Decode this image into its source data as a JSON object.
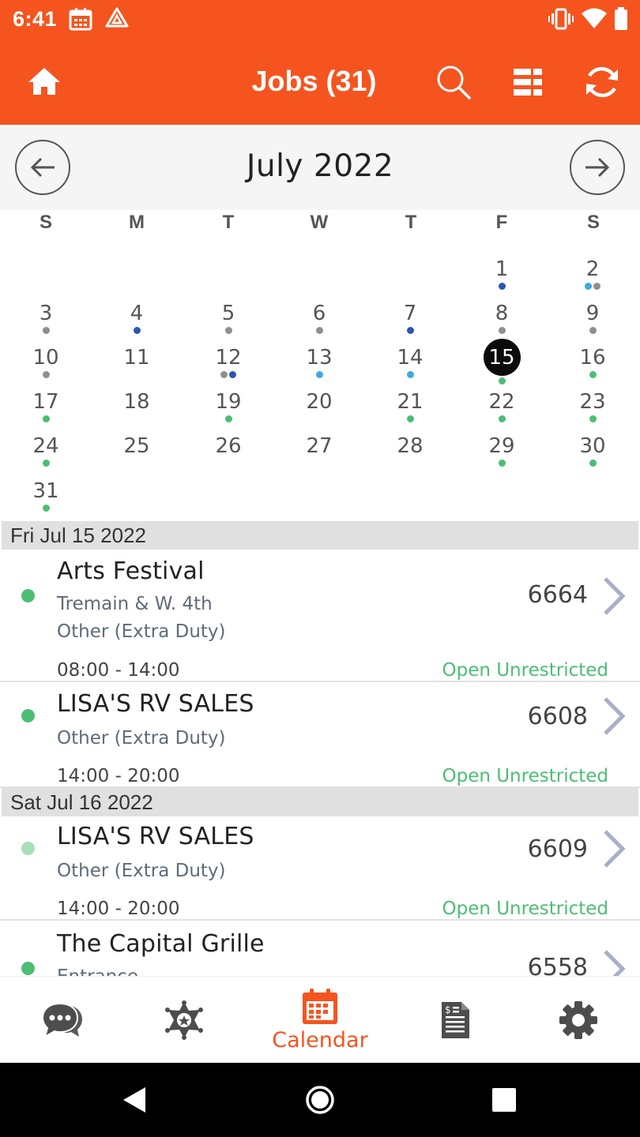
{
  "status_bar": {
    "time": "6:41",
    "icons": [
      "calendar-icon",
      "drive-icon",
      "vibrate-icon",
      "wifi-icon",
      "battery-icon"
    ]
  },
  "app_bar": {
    "title": "Jobs (31)",
    "icons": [
      "home-icon",
      "search-icon",
      "list-view-icon",
      "refresh-icon"
    ]
  },
  "calendar": {
    "month_label": "July 2022",
    "weekdays": [
      "S",
      "M",
      "T",
      "W",
      "T",
      "F",
      "S"
    ],
    "selected_day": "15",
    "days": [
      {
        "n": "1",
        "dots": [
          "#2c56b3"
        ]
      },
      {
        "n": "2",
        "dots": [
          "#3fa9e0",
          "#8f8f8f"
        ]
      },
      {
        "n": "3",
        "dots": [
          "#8f8f8f"
        ]
      },
      {
        "n": "4",
        "dots": [
          "#2c56b3"
        ]
      },
      {
        "n": "5",
        "dots": [
          "#8f8f8f"
        ]
      },
      {
        "n": "6",
        "dots": [
          "#8f8f8f"
        ]
      },
      {
        "n": "7",
        "dots": [
          "#2c56b3"
        ]
      },
      {
        "n": "8",
        "dots": [
          "#8f8f8f"
        ]
      },
      {
        "n": "9",
        "dots": [
          "#8f8f8f"
        ]
      },
      {
        "n": "10",
        "dots": [
          "#8f8f8f"
        ]
      },
      {
        "n": "11",
        "dots": []
      },
      {
        "n": "12",
        "dots": [
          "#8f8f8f",
          "#2c56b3"
        ]
      },
      {
        "n": "13",
        "dots": [
          "#3fa9e0"
        ]
      },
      {
        "n": "14",
        "dots": [
          "#3fa9e0"
        ]
      },
      {
        "n": "15",
        "dots": [
          "#4dbd74"
        ]
      },
      {
        "n": "16",
        "dots": [
          "#4dbd74"
        ]
      },
      {
        "n": "17",
        "dots": [
          "#4dbd74"
        ]
      },
      {
        "n": "18",
        "dots": []
      },
      {
        "n": "19",
        "dots": [
          "#4dbd74"
        ]
      },
      {
        "n": "20",
        "dots": []
      },
      {
        "n": "21",
        "dots": [
          "#4dbd74"
        ]
      },
      {
        "n": "22",
        "dots": [
          "#4dbd74"
        ]
      },
      {
        "n": "23",
        "dots": [
          "#4dbd74"
        ]
      },
      {
        "n": "24",
        "dots": [
          "#4dbd74"
        ]
      },
      {
        "n": "25",
        "dots": []
      },
      {
        "n": "26",
        "dots": []
      },
      {
        "n": "27",
        "dots": []
      },
      {
        "n": "28",
        "dots": []
      },
      {
        "n": "29",
        "dots": [
          "#4dbd74"
        ]
      },
      {
        "n": "30",
        "dots": [
          "#4dbd74"
        ]
      },
      {
        "n": "31",
        "dots": [
          "#4dbd74"
        ]
      }
    ]
  },
  "jobs": {
    "groups": [
      {
        "date": "Fri Jul 15 2022"
      },
      {
        "date": "Sat Jul 16 2022"
      }
    ],
    "items": [
      {
        "title": "Arts Festival",
        "location": "Tremain & W. 4th",
        "type": "Other (Extra Duty)",
        "time": "08:00 - 14:00",
        "number": "6664",
        "status": "Open Unrestricted",
        "dot_color": "#4dbd74"
      },
      {
        "title": "LISA'S RV SALES",
        "type": "Other (Extra Duty)",
        "time": "14:00 - 20:00",
        "number": "6608",
        "status": "Open Unrestricted",
        "dot_color": "#4dbd74"
      },
      {
        "title": "LISA'S RV SALES",
        "type": "Other (Extra Duty)",
        "time": "14:00 - 20:00",
        "number": "6609",
        "status": "Open Unrestricted",
        "dot_color": "#a8e0b9"
      },
      {
        "title": "The Capital Grille",
        "location": "Entrance",
        "number": "6558",
        "dot_color": "#4dbd74"
      }
    ]
  },
  "tab_bar": {
    "tabs": [
      {
        "icon": "chat-icon"
      },
      {
        "icon": "badge-icon"
      },
      {
        "icon": "calendar-icon",
        "label": "Calendar",
        "active": true
      },
      {
        "icon": "document-icon"
      },
      {
        "icon": "settings-icon"
      }
    ],
    "active_color": "#f5541f"
  },
  "colors": {
    "brand": "#f5541f",
    "status_open": "#4dbd74"
  }
}
